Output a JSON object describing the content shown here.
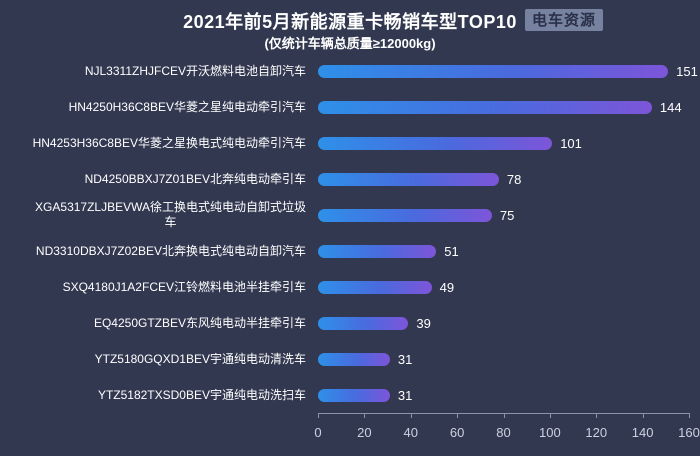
{
  "header": {
    "title": "2021年前5月新能源重卡畅销车型TOP10",
    "subtitle": "(仅统计车辆总质量≥12000kg)",
    "logo_text": "电车资源"
  },
  "colors": {
    "background": "#323850",
    "title_text": "#ffffff",
    "bar_gradient_start": "#2e90e9",
    "bar_gradient_end": "#7d55d9",
    "axis_line": "#8e93ab",
    "tick_label": "#ccd1e2",
    "logo_background": "#76829f",
    "logo_text": "#2b3049"
  },
  "chart_data": {
    "type": "bar",
    "orientation": "horizontal",
    "title": "2021年前5月新能源重卡畅销车型TOP10",
    "subtitle": "(仅统计车辆总质量≥12000kg)",
    "categories": [
      "NJL3311ZHJFCEV开沃燃料电池自卸汽车",
      "HN4250H36C8BEV华菱之星纯电动牵引汽车",
      "HN4253H36C8BEV华菱之星换电式纯电动牵引汽车",
      "ND4250BBXJ7Z01BEV北奔纯电动牵引车",
      "XGA5317ZLJBEVWA徐工换电式纯电动自卸式垃圾\n车",
      "ND3310DBXJ7Z02BEV北奔换电式纯电动自卸汽车",
      "SXQ4180J1A2FCEV江铃燃料电池半挂牵引车",
      "EQ4250GTZBEV东风纯电动半挂牵引车",
      "YTZ5180GQXD1BEV宇通纯电动清洗车",
      "YTZ5182TXSD0BEV宇通纯电动洗扫车"
    ],
    "values": [
      151,
      144,
      101,
      78,
      75,
      51,
      49,
      39,
      31,
      31
    ],
    "xlabel": "",
    "ylabel": "",
    "xlim": [
      0,
      160
    ],
    "x_ticks": [
      0,
      20,
      40,
      60,
      80,
      100,
      120,
      140,
      160
    ],
    "grid": false,
    "legend": null,
    "value_labels_shown": true
  }
}
